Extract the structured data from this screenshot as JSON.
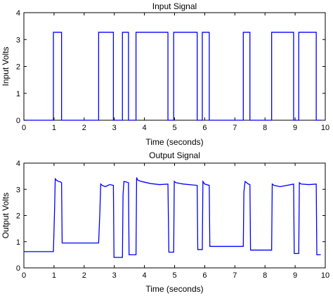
{
  "chart_data": [
    {
      "type": "line",
      "title": "Input Signal",
      "xlabel": "Time (seconds)",
      "ylabel": "Input Volts",
      "xlim": [
        0,
        10
      ],
      "ylim": [
        0,
        4
      ],
      "xticks": [
        "0",
        "1",
        "2",
        "3",
        "4",
        "5",
        "6",
        "7",
        "8",
        "9",
        "10"
      ],
      "yticks": [
        "0",
        "1",
        "2",
        "3",
        "4"
      ],
      "grid": false,
      "line_color": "#0000ff",
      "series": [
        {
          "x": [
            0,
            0.98,
            0.98,
            1.25,
            1.25,
            2.48,
            2.48,
            2.97,
            2.97,
            3.27,
            3.27,
            3.47,
            3.47,
            3.72,
            3.72,
            4.78,
            4.78,
            4.97,
            4.97,
            5.75,
            5.75,
            5.92,
            5.92,
            6.15,
            6.15,
            7.28,
            7.28,
            7.5,
            7.5,
            8.22,
            8.22,
            8.95,
            8.95,
            9.12,
            9.12,
            9.7,
            9.7,
            9.85
          ],
          "y": [
            0,
            0,
            3.27,
            3.27,
            0,
            0,
            3.27,
            3.27,
            0,
            0,
            3.27,
            3.27,
            0,
            0,
            3.27,
            3.27,
            0,
            0,
            3.27,
            3.27,
            0,
            0,
            3.27,
            3.27,
            0,
            0,
            3.27,
            3.27,
            0,
            0,
            3.27,
            3.27,
            0,
            0,
            3.27,
            3.27,
            0,
            0
          ]
        }
      ]
    },
    {
      "type": "line",
      "title": "Output Signal",
      "xlabel": "Time (seconds)",
      "ylabel": "Output Volts",
      "xlim": [
        0,
        10
      ],
      "ylim": [
        0,
        4
      ],
      "xticks": [
        "0",
        "1",
        "2",
        "3",
        "4",
        "5",
        "6",
        "7",
        "8",
        "9",
        "10"
      ],
      "yticks": [
        "0",
        "1",
        "2",
        "3",
        "4"
      ],
      "grid": false,
      "line_color": "#0000ff",
      "series": [
        {
          "x": [
            0,
            0.98,
            1.02,
            1.04,
            1.08,
            1.15,
            1.22,
            1.25,
            1.27,
            1.35,
            2.48,
            2.52,
            2.55,
            2.6,
            2.7,
            2.85,
            2.97,
            2.99,
            3.27,
            3.29,
            3.32,
            3.4,
            3.47,
            3.49,
            3.72,
            3.74,
            3.78,
            3.9,
            4.2,
            4.5,
            4.78,
            4.81,
            4.97,
            4.99,
            5.05,
            5.3,
            5.75,
            5.77,
            5.92,
            5.94,
            6.0,
            6.15,
            6.17,
            7.28,
            7.3,
            7.34,
            7.45,
            7.5,
            7.52,
            8.22,
            8.24,
            8.3,
            8.5,
            8.95,
            8.97,
            9.12,
            9.14,
            9.2,
            9.45,
            9.7,
            9.72,
            9.85
          ],
          "y": [
            0.62,
            0.62,
            2.3,
            3.4,
            3.35,
            3.3,
            3.28,
            3.25,
            0.95,
            0.95,
            0.95,
            2.1,
            3.2,
            3.15,
            3.1,
            3.18,
            3.15,
            0.4,
            0.4,
            2.8,
            3.3,
            3.28,
            3.25,
            0.5,
            0.5,
            3.45,
            3.35,
            3.3,
            3.22,
            3.18,
            3.2,
            0.6,
            0.6,
            3.3,
            3.25,
            3.2,
            3.15,
            0.7,
            0.7,
            3.3,
            3.2,
            3.15,
            0.82,
            0.82,
            2.9,
            3.3,
            3.2,
            3.18,
            0.68,
            0.68,
            3.2,
            3.15,
            3.1,
            3.2,
            0.55,
            0.55,
            3.25,
            3.2,
            3.18,
            3.2,
            0.5,
            0.5
          ]
        }
      ]
    }
  ]
}
